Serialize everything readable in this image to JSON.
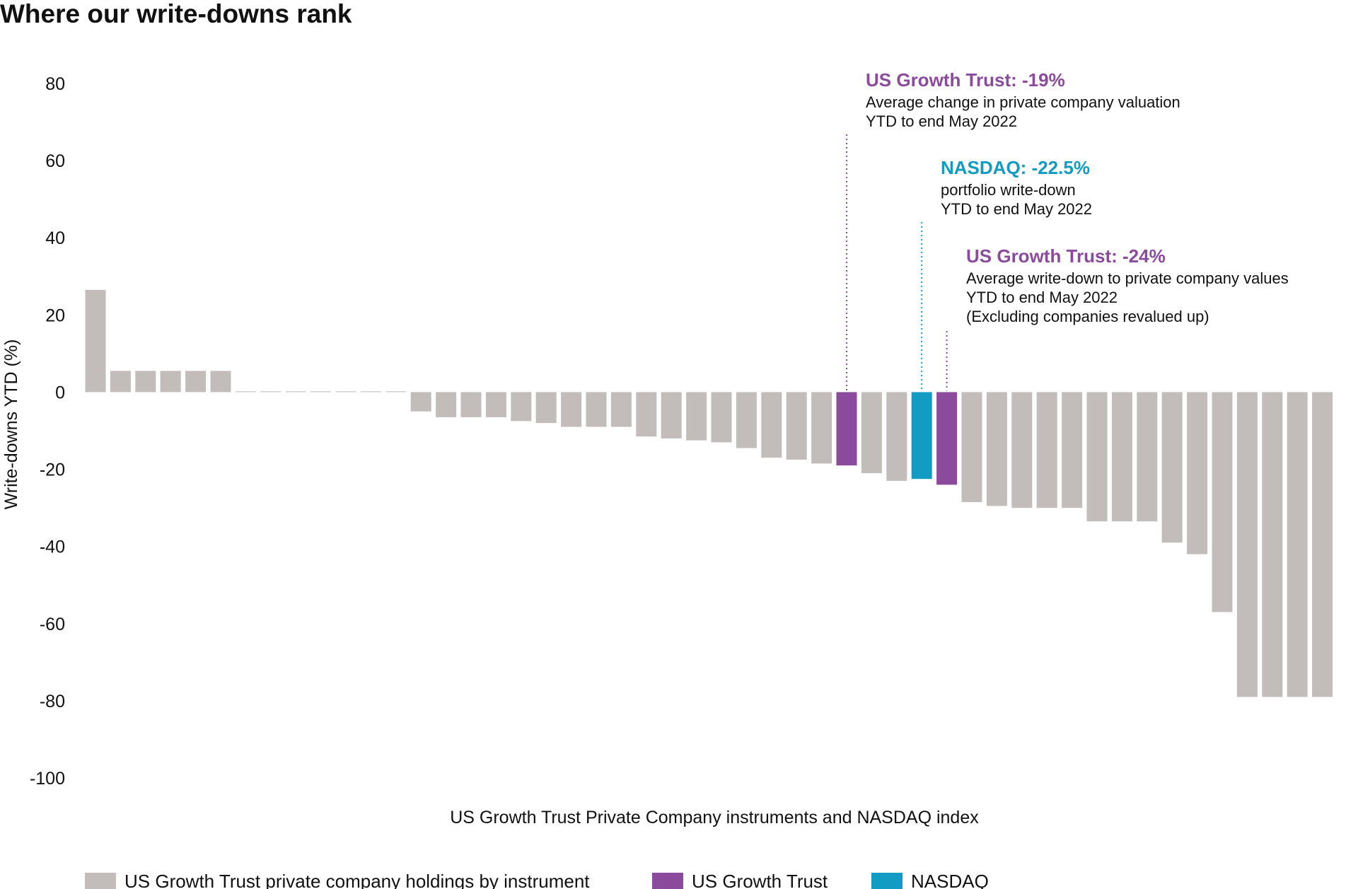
{
  "colors": {
    "holdings": "#c2bdba",
    "trust": "#8b4a9c",
    "nasdaq": "#129cc3",
    "text": "#111111"
  },
  "chart_data": {
    "type": "bar",
    "title": "Where our write-downs rank",
    "xlabel": "US Growth Trust Private Company instruments and NASDAQ index",
    "ylabel": "Write-downs YTD (%)",
    "ylim": [
      -100,
      80
    ],
    "yticks": [
      "80",
      "60",
      "40",
      "20",
      "0",
      "-20",
      "-40",
      "-60",
      "-80",
      "-100"
    ],
    "grid": false,
    "legend_position": "bottom",
    "series": [
      {
        "name": "US Growth Trust private company holdings by instrument",
        "color": "#c2bdba",
        "values": [
          26.5,
          5.5,
          5.5,
          5.5,
          5.5,
          5.5,
          0.2,
          0.2,
          0.2,
          0.2,
          0.2,
          0.2,
          0.2,
          -5,
          -6.5,
          -6.5,
          -6.5,
          -7.5,
          -8,
          -9,
          -9,
          -9,
          -11.5,
          -12,
          -12.5,
          -13,
          -14.5,
          -17,
          -17.5,
          -18.5,
          null,
          -21,
          -23,
          null,
          null,
          -28.5,
          -29.5,
          -30,
          -30,
          -30,
          -33.5,
          -33.5,
          -33.5,
          -39,
          -42,
          -57,
          -79,
          -79,
          -79,
          -79
        ]
      },
      {
        "name": "US Growth Trust",
        "color": "#8b4a9c",
        "values": [
          null,
          null,
          null,
          null,
          null,
          null,
          null,
          null,
          null,
          null,
          null,
          null,
          null,
          null,
          null,
          null,
          null,
          null,
          null,
          null,
          null,
          null,
          null,
          null,
          null,
          null,
          null,
          null,
          null,
          null,
          -19,
          null,
          null,
          null,
          -24,
          null,
          null,
          null,
          null,
          null,
          null,
          null,
          null,
          null,
          null,
          null,
          null,
          null,
          null,
          null
        ]
      },
      {
        "name": "NASDAQ",
        "color": "#129cc3",
        "values": [
          null,
          null,
          null,
          null,
          null,
          null,
          null,
          null,
          null,
          null,
          null,
          null,
          null,
          null,
          null,
          null,
          null,
          null,
          null,
          null,
          null,
          null,
          null,
          null,
          null,
          null,
          null,
          null,
          null,
          null,
          null,
          null,
          null,
          -22.5,
          null,
          null,
          null,
          null,
          null,
          null,
          null,
          null,
          null,
          null,
          null,
          null,
          null,
          null,
          null,
          null
        ]
      }
    ],
    "annotations": [
      {
        "bar_index": 30,
        "series": "US Growth Trust",
        "head": "US Growth Trust: -19%",
        "lines": [
          "Average change in private company valuation",
          "YTD to end May 2022"
        ],
        "color": "#8b4a9c"
      },
      {
        "bar_index": 33,
        "series": "NASDAQ",
        "head": "NASDAQ: -22.5%",
        "lines": [
          "portfolio write-down",
          "YTD to end May 2022"
        ],
        "color": "#129cc3"
      },
      {
        "bar_index": 34,
        "series": "US Growth Trust",
        "head": "US Growth Trust: -24%",
        "lines": [
          "Average write-down to private company values",
          "YTD to end May 2022",
          "(Excluding companies revalued up)"
        ],
        "color": "#8b4a9c"
      }
    ],
    "legend": [
      {
        "label": "US Growth Trust private company holdings by instrument",
        "color": "#c2bdba"
      },
      {
        "label": "US Growth Trust",
        "color": "#8b4a9c"
      },
      {
        "label": "NASDAQ",
        "color": "#129cc3"
      }
    ]
  }
}
